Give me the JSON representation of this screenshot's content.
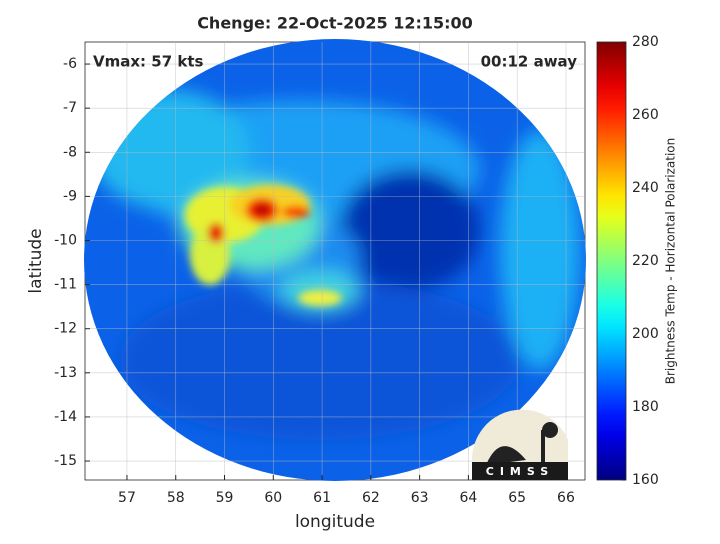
{
  "chart_data": {
    "type": "image",
    "title": "Chenge: 22-Oct-2025 12:15:00",
    "annotations": {
      "vmax": "Vmax: 57 kts",
      "away": "00:12 away"
    },
    "x_label": "longitude",
    "y_label": "latitude",
    "xlim": [
      56.14,
      66.39
    ],
    "xticks": [
      57,
      58,
      59,
      60,
      61,
      62,
      63,
      64,
      65,
      66
    ],
    "ylim": [
      -15.43,
      -5.5
    ],
    "yticks": [
      -15,
      -14,
      -13,
      -12,
      -11,
      -10,
      -9,
      -8,
      -7,
      -6
    ],
    "grid": true,
    "colormap": "jet",
    "colorbar": {
      "label": "Brightness Temp - Horizontal Polarization",
      "clim": [
        160,
        280
      ],
      "ticks": [
        160,
        180,
        200,
        220,
        240,
        260,
        280
      ]
    },
    "logo_text": "CIMSS"
  }
}
